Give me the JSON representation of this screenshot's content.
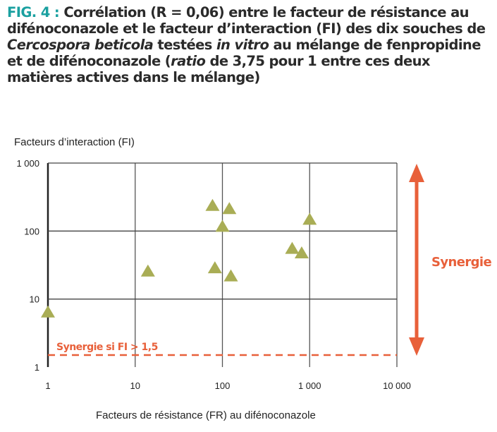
{
  "title": {
    "fig": "FIG. 4 :",
    "parts": [
      " Corrélation (R = 0,06) entre le facteur de résistance au difénoconazole et le facteur d’interaction (FI) des dix souches de ",
      "Cercospora beticola",
      " testées ",
      "in vitro",
      " au mélange de fenpropidine et de difénoconazole (",
      "ratio",
      " de 3,75 pour 1 entre ces deux matières actives dans le mélange)"
    ]
  },
  "colors": {
    "fig": "#1aa0a0",
    "points": "#a9ad55",
    "synergy": "#e8603a",
    "grid": "#333333"
  },
  "chart_data": {
    "type": "scatter",
    "title": "",
    "xlabel": "Facteurs de résistance (FR) au difénoconazole",
    "ylabel": "Facteurs d’interaction (FI)",
    "xscale": "log",
    "yscale": "log",
    "xlim": [
      1,
      10000
    ],
    "ylim": [
      1,
      1000
    ],
    "xticks": [
      1,
      10,
      100,
      1000,
      10000
    ],
    "xtick_labels": [
      "1",
      "10",
      "100",
      "1 000",
      "10 000"
    ],
    "yticks": [
      1,
      10,
      100,
      1000
    ],
    "ytick_labels": [
      "1",
      "10",
      "100",
      "1 000"
    ],
    "grid": true,
    "marker": "triangle",
    "points": [
      {
        "x": 1,
        "y": 6.5
      },
      {
        "x": 14,
        "y": 26
      },
      {
        "x": 77,
        "y": 240
      },
      {
        "x": 120,
        "y": 215
      },
      {
        "x": 100,
        "y": 118
      },
      {
        "x": 82,
        "y": 29
      },
      {
        "x": 125,
        "y": 22
      },
      {
        "x": 630,
        "y": 56
      },
      {
        "x": 810,
        "y": 48
      },
      {
        "x": 1000,
        "y": 150
      }
    ],
    "threshold": {
      "y": 1.5,
      "label": "Synergie si FI > 1,5"
    },
    "arrow_label": "Synergie"
  }
}
